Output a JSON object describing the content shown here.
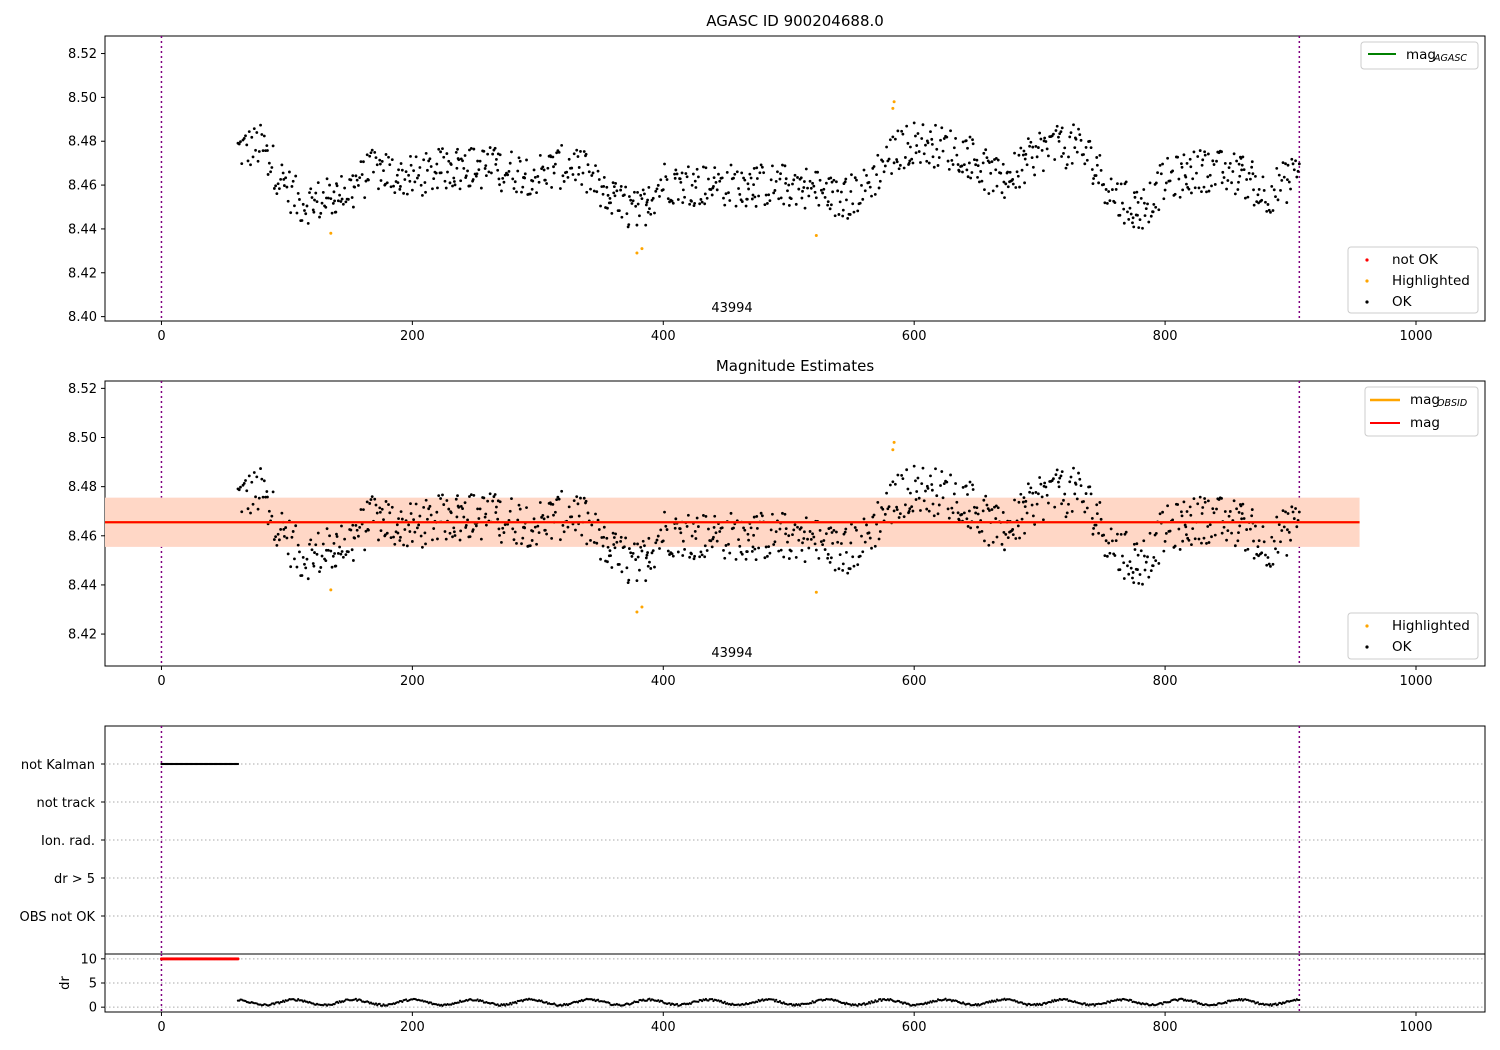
{
  "chart_data": [
    {
      "type": "scatter",
      "title": "AGASC ID 900204688.0",
      "xlim": [
        -45,
        1055
      ],
      "ylim": [
        8.398,
        8.528
      ],
      "xticks": [
        0,
        200,
        400,
        600,
        800,
        1000
      ],
      "yticks": [
        8.4,
        8.42,
        8.44,
        8.46,
        8.48,
        8.5,
        8.52
      ],
      "ytick_labels": [
        "8.40",
        "8.42",
        "8.44",
        "8.46",
        "8.48",
        "8.50",
        "8.52"
      ],
      "vlines": [
        0,
        907
      ],
      "vline_color": "#800080",
      "annotation": {
        "text": "43994",
        "x": 453
      },
      "series": [
        {
          "name": "not OK",
          "color": "#ff0000",
          "points": []
        },
        {
          "name": "Highlighted",
          "color": "#ffa500",
          "points": [
            [
              135,
              8.438
            ],
            [
              379,
              8.429
            ],
            [
              383,
              8.431
            ],
            [
              522,
              8.437
            ],
            [
              583,
              8.495
            ],
            [
              584,
              8.498
            ]
          ]
        },
        {
          "name": "OK",
          "color": "#000000",
          "generated": true,
          "x_range": [
            61,
            907
          ]
        }
      ],
      "line_legend": {
        "name": "mag",
        "subscript": "AGASC",
        "color": "#008000"
      },
      "grid": false,
      "legend": "upper right and lower right"
    },
    {
      "type": "scatter",
      "title": "Magnitude Estimates",
      "xlim": [
        -45,
        1055
      ],
      "ylim": [
        8.407,
        8.523
      ],
      "xticks": [
        0,
        200,
        400,
        600,
        800,
        1000
      ],
      "yticks": [
        8.42,
        8.44,
        8.46,
        8.48,
        8.5,
        8.52
      ],
      "ytick_labels": [
        "8.42",
        "8.44",
        "8.46",
        "8.48",
        "8.50",
        "8.52"
      ],
      "vlines": [
        0,
        907
      ],
      "annotation": {
        "text": "43994",
        "x": 453
      },
      "mag_line": {
        "name": "mag",
        "value": 8.4655,
        "color": "#ff0000",
        "band": [
          8.4555,
          8.4755
        ],
        "band_color": "#ffe0e6"
      },
      "mag_obsid": {
        "name": "mag",
        "subscript": "OBSID",
        "value": 8.4655,
        "band": [
          8.4555,
          8.4755
        ],
        "x_range": [
          -45,
          955
        ],
        "color": "#ffa500",
        "band_color": "#ffd0b0"
      },
      "series": [
        {
          "name": "Highlighted",
          "color": "#ffa500",
          "points": [
            [
              135,
              8.438
            ],
            [
              379,
              8.429
            ],
            [
              383,
              8.431
            ],
            [
              522,
              8.437
            ],
            [
              583,
              8.495
            ],
            [
              584,
              8.498
            ]
          ]
        },
        {
          "name": "OK",
          "color": "#000000",
          "generated": true,
          "x_range": [
            61,
            907
          ]
        }
      ],
      "grid": false,
      "legend": "upper right and lower right"
    },
    {
      "type": "scatter",
      "title": "",
      "xlim": [
        -45,
        1055
      ],
      "xticks": [
        0,
        200,
        400,
        600,
        800,
        1000
      ],
      "flag_labels": [
        "not Kalman",
        "not track",
        "Ion. rad.",
        "dr > 5",
        "OBS not OK"
      ],
      "flag_points": {
        "not Kalman": [
          0,
          61
        ]
      },
      "dr": {
        "ylabel": "dr",
        "ylim": [
          -1,
          11
        ],
        "yticks": [
          0,
          5,
          10
        ],
        "ytick_labels": [
          "0",
          "5",
          "10"
        ],
        "clipped_points_range": [
          0,
          61
        ],
        "clipped_value": 10,
        "clipped_color": "#ff0000",
        "ok_range": [
          61,
          907
        ]
      },
      "vlines": [
        0,
        907
      ],
      "grid": true
    }
  ]
}
